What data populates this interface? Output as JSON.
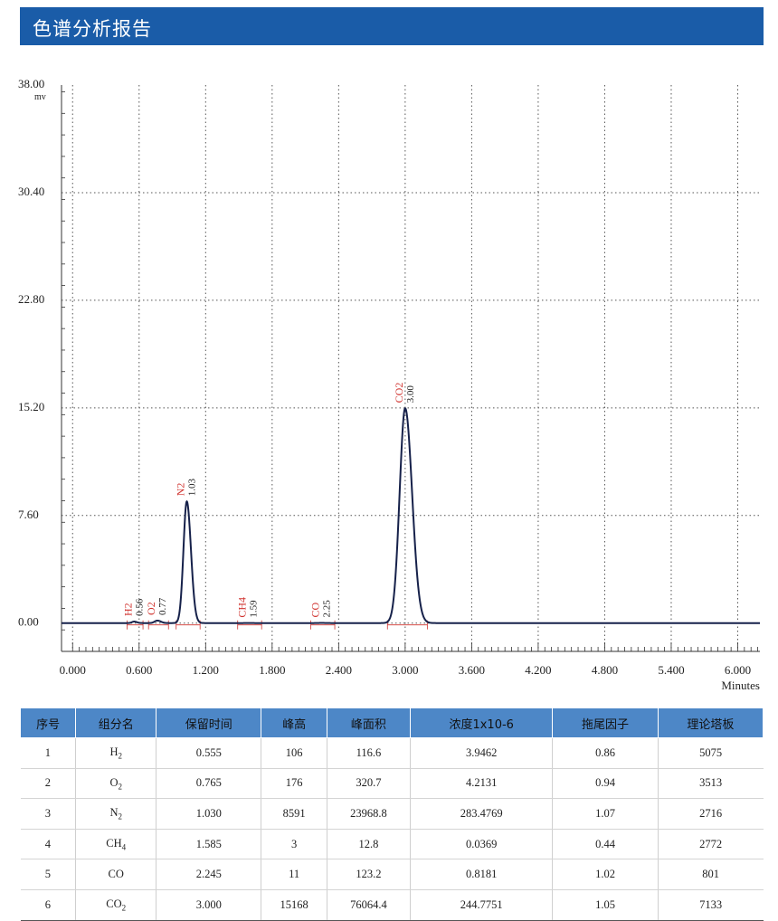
{
  "header": {
    "title": "色谱分析报告"
  },
  "chart_data": {
    "type": "line",
    "yunit": "mv",
    "xunit": "Minutes",
    "ylim": [
      -2,
      38
    ],
    "xlim": [
      -0.1,
      6.2
    ],
    "yticks": [
      "38.00",
      "30.40",
      "22.80",
      "15.20",
      "7.60",
      "0.00"
    ],
    "ytick_values": [
      38,
      30.4,
      22.8,
      15.2,
      7.6,
      0
    ],
    "xticks": [
      "0.000",
      "0.600",
      "1.200",
      "1.800",
      "2.400",
      "3.000",
      "3.600",
      "4.200",
      "4.800",
      "5.400",
      "6.000"
    ],
    "xtick_values": [
      0,
      0.6,
      1.2,
      1.8,
      2.4,
      3.0,
      3.6,
      4.2,
      4.8,
      5.4,
      6.0
    ],
    "grid": true,
    "baseline": 0,
    "peaks": [
      {
        "name": "H2",
        "label": "0.56",
        "rt": 0.555,
        "height": 0.106,
        "width": 0.02
      },
      {
        "name": "O2",
        "label": "0.77",
        "rt": 0.765,
        "height": 0.176,
        "width": 0.025
      },
      {
        "name": "N2",
        "label": "1.03",
        "rt": 1.03,
        "height": 8.591,
        "width": 0.03
      },
      {
        "name": "CH4",
        "label": "1.59",
        "rt": 1.585,
        "height": 0.003,
        "width": 0.03
      },
      {
        "name": "CO",
        "label": "2.25",
        "rt": 2.245,
        "height": 0.011,
        "width": 0.03
      },
      {
        "name": "CO2",
        "label": "3.00",
        "rt": 3.0,
        "height": 15.168,
        "width": 0.05
      }
    ]
  },
  "table": {
    "headers": [
      "序号",
      "组分名",
      "保留时间",
      "峰高",
      "峰面积",
      "浓度1x10-6",
      "拖尾因子",
      "理论塔板"
    ],
    "rows": [
      {
        "no": "1",
        "name": "H",
        "sub": "2",
        "rt": "0.555",
        "height": "106",
        "area": "116.6",
        "conc": "3.9462",
        "tailing": "0.86",
        "plates": "5075"
      },
      {
        "no": "2",
        "name": "O",
        "sub": "2",
        "rt": "0.765",
        "height": "176",
        "area": "320.7",
        "conc": "4.2131",
        "tailing": "0.94",
        "plates": "3513"
      },
      {
        "no": "3",
        "name": "N",
        "sub": "2",
        "rt": "1.030",
        "height": "8591",
        "area": "23968.8",
        "conc": "283.4769",
        "tailing": "1.07",
        "plates": "2716"
      },
      {
        "no": "4",
        "name": "CH",
        "sub": "4",
        "rt": "1.585",
        "height": "3",
        "area": "12.8",
        "conc": "0.0369",
        "tailing": "0.44",
        "plates": "2772"
      },
      {
        "no": "5",
        "name": "CO",
        "sub": "",
        "rt": "2.245",
        "height": "11",
        "area": "123.2",
        "conc": "0.8181",
        "tailing": "1.02",
        "plates": "801"
      },
      {
        "no": "6",
        "name": "CO",
        "sub": "2",
        "rt": "3.000",
        "height": "15168",
        "area": "76064.4",
        "conc": "244.7751",
        "tailing": "1.05",
        "plates": "7133"
      }
    ]
  },
  "colors": {
    "header_bg": "#1a5ca8",
    "table_header_bg": "#4d87c7",
    "trace": "#16214a",
    "peak_label": "#d0332f",
    "grid": "#555555"
  }
}
